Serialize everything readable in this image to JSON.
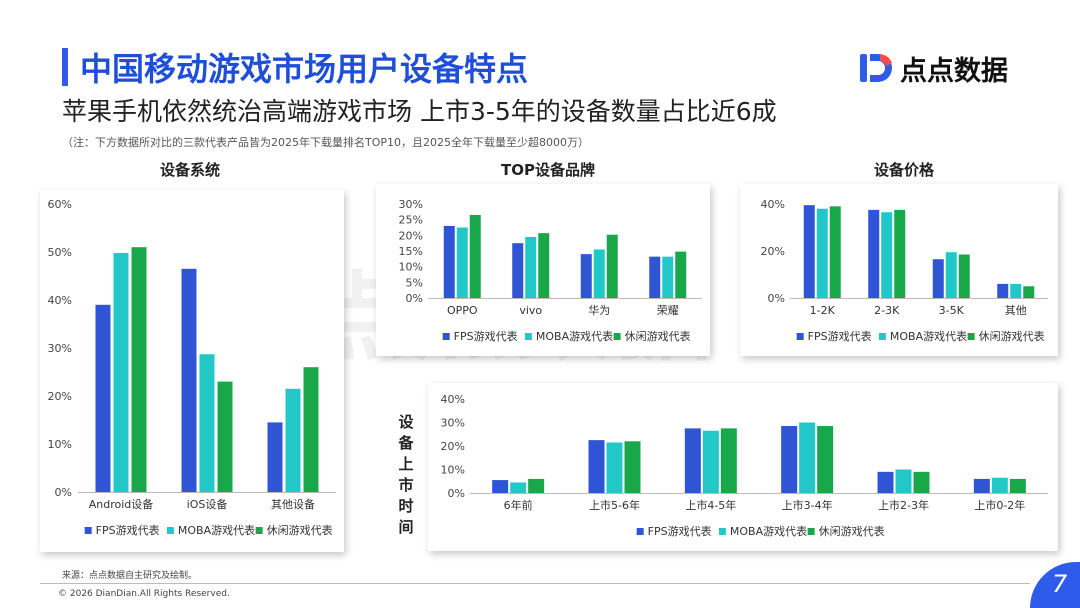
{
  "header": {
    "title": "中国移动游戏市场用户设备特点",
    "subtitle": "苹果手机依然统治高端游戏市场 上市3-5年的设备数量占比近6成",
    "note": "（注：下方数据所对比的三款代表产品皆为2025年下载量排名TOP10，且2025全年下载量至少超8000万）"
  },
  "logo": {
    "text": "点点数据",
    "icon": "dd-logo-icon"
  },
  "watermark": "点点数据",
  "colors": {
    "fps": "#2f55d4",
    "moba": "#22c8c8",
    "casual": "#18a84a",
    "title": "#1f4fd8"
  },
  "chart_data": [
    {
      "id": "os",
      "type": "bar",
      "title": "设备系统",
      "categories": [
        "Android设备",
        "iOS设备",
        "其他设备"
      ],
      "series": [
        {
          "name": "FPS游戏代表",
          "values": [
            39,
            46.5,
            14.5
          ]
        },
        {
          "name": "MOBA游戏代表",
          "values": [
            49.8,
            28.7,
            21.5
          ]
        },
        {
          "name": "休闲游戏代表",
          "values": [
            51,
            23,
            26
          ]
        }
      ],
      "ylim": [
        0,
        60
      ],
      "yticks": [
        "0%",
        "10%",
        "20%",
        "30%",
        "40%",
        "50%",
        "60%"
      ],
      "legend": "bottom"
    },
    {
      "id": "brand",
      "type": "bar",
      "title": "TOP设备品牌",
      "categories": [
        "OPPO",
        "vivo",
        "华为",
        "荣耀"
      ],
      "series": [
        {
          "name": "FPS游戏代表",
          "values": [
            23,
            17.5,
            14,
            13.2
          ]
        },
        {
          "name": "MOBA游戏代表",
          "values": [
            22.5,
            19.5,
            15.5,
            13.2
          ]
        },
        {
          "name": "休闲游戏代表",
          "values": [
            26.5,
            20.7,
            20.2,
            14.8
          ]
        }
      ],
      "ylim": [
        0,
        30
      ],
      "yticks": [
        "0%",
        "5%",
        "10%",
        "15%",
        "20%",
        "25%",
        "30%"
      ],
      "legend": "bottom"
    },
    {
      "id": "price",
      "type": "bar",
      "title": "设备价格",
      "categories": [
        "1-2K",
        "2-3K",
        "3-5K",
        "其他"
      ],
      "series": [
        {
          "name": "FPS游戏代表",
          "values": [
            39.5,
            37.5,
            16.5,
            6
          ]
        },
        {
          "name": "MOBA游戏代表",
          "values": [
            38,
            36.5,
            19.5,
            6
          ]
        },
        {
          "name": "休闲游戏代表",
          "values": [
            39,
            37.5,
            18.5,
            5
          ]
        }
      ],
      "ylim": [
        0,
        40
      ],
      "yticks": [
        "0%",
        "20%",
        "40%"
      ],
      "legend": "bottom"
    },
    {
      "id": "age",
      "type": "bar",
      "title": "设备上市时间",
      "categories": [
        "6年前",
        "上市5-6年",
        "上市4-5年",
        "上市3-4年",
        "上市2-3年",
        "上市0-2年"
      ],
      "series": [
        {
          "name": "FPS游戏代表",
          "values": [
            5.5,
            22.5,
            27.5,
            28.5,
            9,
            6
          ]
        },
        {
          "name": "MOBA游戏代表",
          "values": [
            4.5,
            21.5,
            26.5,
            30,
            10,
            6.5
          ]
        },
        {
          "name": "休闲游戏代表",
          "values": [
            6,
            22,
            27.5,
            28.5,
            9,
            6
          ]
        }
      ],
      "ylim": [
        0,
        40
      ],
      "yticks": [
        "0%",
        "10%",
        "20%",
        "30%",
        "40%"
      ],
      "legend": "bottom"
    }
  ],
  "footer": {
    "source": "来源：点点数据自主研究及绘制。",
    "copyright": "© 2026 DianDian.All Rights Reserved.",
    "page": "7"
  }
}
